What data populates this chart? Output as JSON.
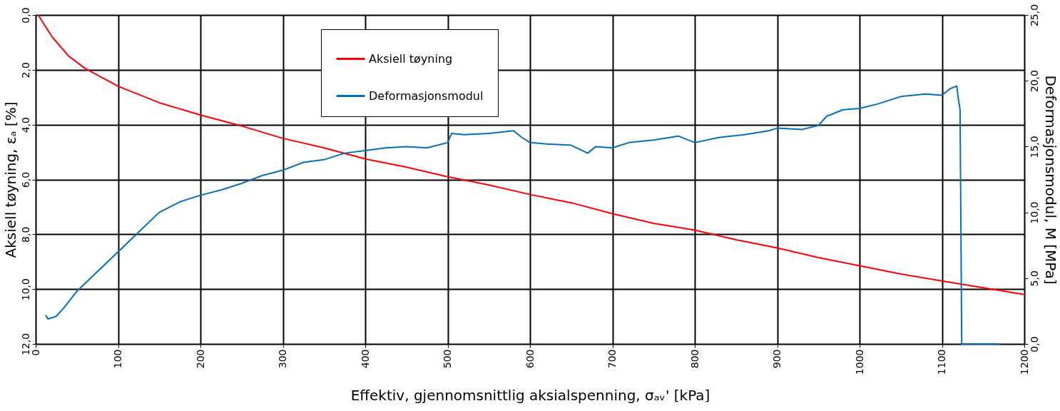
{
  "chart_data": {
    "type": "line",
    "xlabel": "Effektiv, gjennomsnittlig aksialspenning, σₐᵥ'  [kPa]",
    "ylabel": "Aksiell tøyning, εₐ  [%]",
    "y2label": "Deformasjonsmodul, M [MPa]",
    "xlim": [
      0,
      1200
    ],
    "xticks": [
      0,
      100,
      200,
      300,
      400,
      500,
      600,
      700,
      800,
      900,
      1000,
      1100,
      1200
    ],
    "ylim": [
      12,
      0
    ],
    "yticks": [
      {
        "value": 0,
        "label": "0,0"
      },
      {
        "value": 2,
        "label": "2,0"
      },
      {
        "value": 4,
        "label": "4,0"
      },
      {
        "value": 6,
        "label": "6,0"
      },
      {
        "value": 8,
        "label": "8,0"
      },
      {
        "value": 10,
        "label": "10,0"
      },
      {
        "value": 12,
        "label": "12,0"
      }
    ],
    "y2lim": [
      0,
      25
    ],
    "y2ticks": [
      {
        "value": 0,
        "label": "0,0"
      },
      {
        "value": 5,
        "label": "5,0"
      },
      {
        "value": 10,
        "label": "10,0"
      },
      {
        "value": 15,
        "label": "15,0"
      },
      {
        "value": 20,
        "label": "20,0"
      },
      {
        "value": 25,
        "label": "25,0"
      }
    ],
    "grid": true,
    "legend": "top",
    "line_style": "solid",
    "marker": "none",
    "series": [
      {
        "name": "Aksiell tøyning",
        "color": "#ff0000",
        "x": [
          3,
          20,
          40,
          60,
          100,
          150,
          200,
          250,
          300,
          350,
          400,
          450,
          500,
          550,
          600,
          650,
          700,
          750,
          800,
          850,
          900,
          950,
          1000,
          1050,
          1100,
          1150,
          1200
        ],
        "values": [
          0,
          0.8,
          1.5,
          1.95,
          2.6,
          3.2,
          3.65,
          4.05,
          4.5,
          4.85,
          5.25,
          5.55,
          5.9,
          6.2,
          6.55,
          6.85,
          7.25,
          7.6,
          7.85,
          8.2,
          8.5,
          8.85,
          9.15,
          9.45,
          9.7,
          9.95,
          10.2
        ]
      },
      {
        "name": "Deformasjonsmodul",
        "color": "#0070c0",
        "axis": "y2",
        "x": [
          12,
          15,
          25,
          35,
          50,
          75,
          100,
          125,
          150,
          175,
          200,
          225,
          250,
          275,
          300,
          325,
          350,
          375,
          400,
          425,
          450,
          475,
          500,
          505,
          520,
          550,
          580,
          590,
          600,
          620,
          650,
          670,
          680,
          700,
          720,
          750,
          780,
          800,
          830,
          860,
          890,
          900,
          930,
          950,
          960,
          980,
          1000,
          1020,
          1050,
          1080,
          1100,
          1110,
          1118,
          1120,
          1122,
          1124,
          1170
        ],
        "values": [
          2.2,
          1.9,
          2.1,
          2.8,
          4.0,
          5.5,
          7.0,
          8.5,
          10.0,
          10.8,
          11.3,
          11.7,
          12.2,
          12.8,
          13.2,
          13.8,
          14.0,
          14.5,
          14.7,
          14.9,
          15.0,
          14.9,
          15.3,
          16.0,
          15.9,
          16.0,
          16.2,
          15.7,
          15.3,
          15.2,
          15.1,
          14.5,
          15.0,
          14.9,
          15.3,
          15.5,
          15.8,
          15.3,
          15.7,
          15.9,
          16.2,
          16.4,
          16.3,
          16.6,
          17.3,
          17.8,
          17.9,
          18.2,
          18.8,
          19.0,
          18.9,
          19.4,
          19.6,
          18.6,
          17.8,
          0,
          0
        ]
      }
    ]
  }
}
